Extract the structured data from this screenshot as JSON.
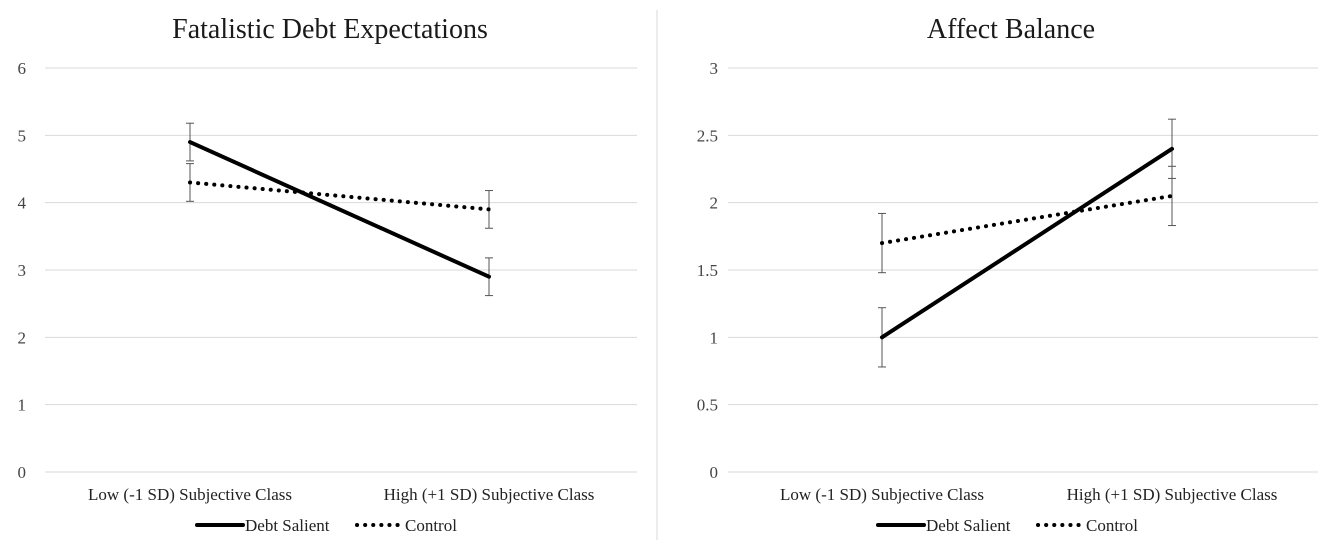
{
  "chart_data": [
    {
      "type": "line",
      "title": "Fatalistic Debt Expectations",
      "categories": [
        "Low (-1 SD) Subjective Class",
        "High (+1 SD) Subjective Class"
      ],
      "ylim": [
        0,
        6
      ],
      "yticks": [
        "0",
        "1",
        "2",
        "3",
        "4",
        "5",
        "6"
      ],
      "grid": true,
      "legend": "bottom",
      "series": [
        {
          "name": "Debt Salient",
          "style": "solid",
          "values": [
            4.9,
            2.9
          ],
          "errors": [
            0.28,
            0.28
          ]
        },
        {
          "name": "Control",
          "style": "dotted",
          "values": [
            4.3,
            3.9
          ],
          "errors": [
            0.28,
            0.28
          ]
        }
      ]
    },
    {
      "type": "line",
      "title": "Affect Balance",
      "categories": [
        "Low (-1 SD) Subjective Class",
        "High (+1 SD) Subjective Class"
      ],
      "ylim": [
        0,
        3
      ],
      "yticks": [
        "0",
        "0.5",
        "1",
        "1.5",
        "2",
        "2.5",
        "3"
      ],
      "grid": true,
      "legend": "bottom",
      "series": [
        {
          "name": "Debt Salient",
          "style": "solid",
          "values": [
            1.0,
            2.4
          ],
          "errors": [
            0.22,
            0.22
          ]
        },
        {
          "name": "Control",
          "style": "dotted",
          "values": [
            1.7,
            2.05
          ],
          "errors": [
            0.22,
            0.22
          ]
        }
      ]
    }
  ],
  "colors": {
    "line": "#000000",
    "grid": "#d9d9d9",
    "divider": "#d9d9d9"
  }
}
